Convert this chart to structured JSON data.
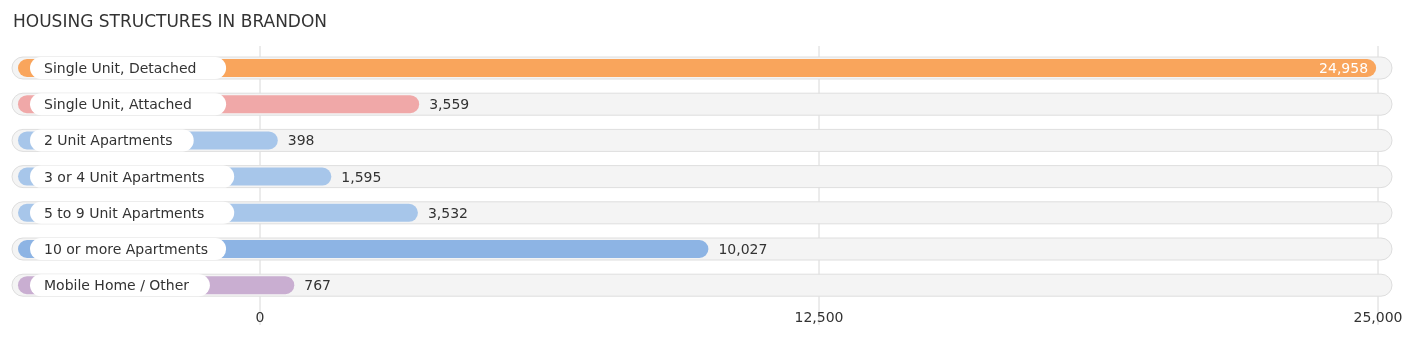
{
  "chart_data": {
    "type": "bar",
    "orientation": "horizontal",
    "title": "HOUSING STRUCTURES IN BRANDON",
    "categories": [
      "Single Unit, Detached",
      "Single Unit, Attached",
      "2 Unit Apartments",
      "3 or 4 Unit Apartments",
      "5 to 9 Unit Apartments",
      "10 or more Apartments",
      "Mobile Home / Other"
    ],
    "values": [
      24958,
      3559,
      398,
      1595,
      3532,
      10027,
      767
    ],
    "colors": [
      "#f9a55c",
      "#f0a8a8",
      "#a7c6ea",
      "#a7c6ea",
      "#a7c6ea",
      "#8db4e4",
      "#c9aed1"
    ],
    "value_labels": [
      "24,958",
      "3,559",
      "398",
      "1,595",
      "3,532",
      "10,027",
      "767"
    ],
    "xlim": [
      0,
      25000
    ],
    "xticks": [
      0,
      {
        "value": 12500,
        "label": "12,500"
      },
      {
        "value": 25000,
        "label": "25,000"
      }
    ],
    "grid": "x"
  }
}
